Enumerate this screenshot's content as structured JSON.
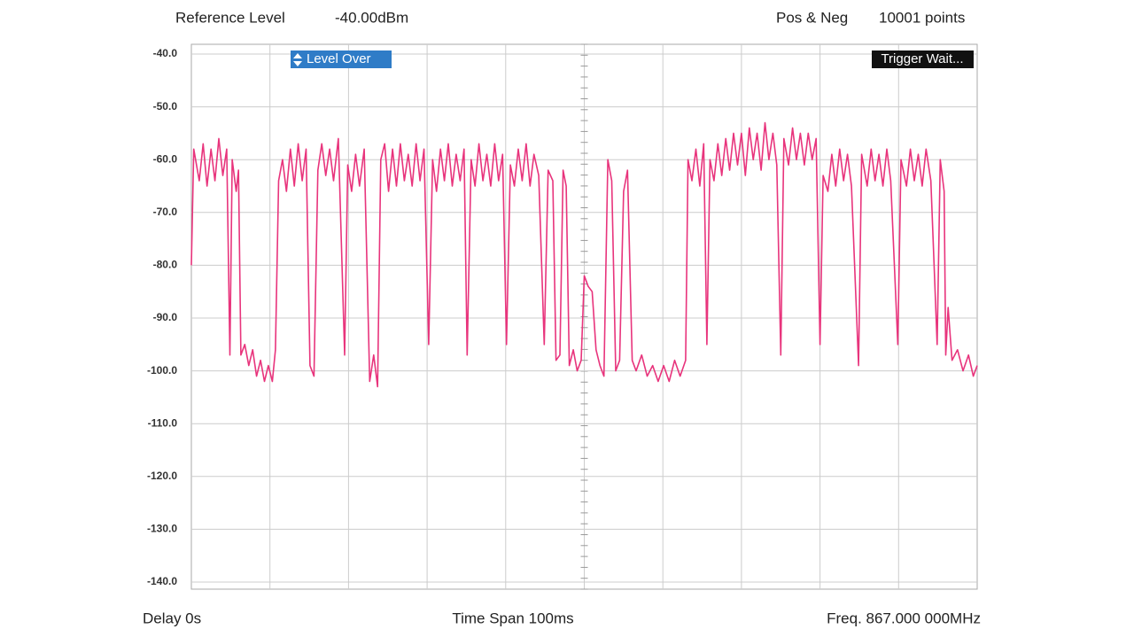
{
  "chart_data": {
    "type": "line",
    "annotations": [
      "Reference Level",
      "-40.00dBm",
      "Pos & Neg",
      "10001 points"
    ],
    "badges": [
      "Level Over",
      "Trigger Wait..."
    ],
    "footer": [
      "Delay 0s",
      "Time Span 100ms",
      "Freq. 867.000 000MHz"
    ],
    "xlim": [
      0,
      100
    ],
    "ylim": [
      -140,
      -40
    ],
    "yticks": [
      {
        "value": -40,
        "label": "-40.0"
      },
      {
        "value": -50,
        "label": "-50.0"
      },
      {
        "value": -60,
        "label": "-60.0"
      },
      {
        "value": -70,
        "label": "-70.0"
      },
      {
        "value": -80,
        "label": "-80.0"
      },
      {
        "value": -90,
        "label": "-90.0"
      },
      {
        "value": -100,
        "label": "-100.0"
      },
      {
        "value": -110,
        "label": "-110.0"
      },
      {
        "value": -120,
        "label": "-120.0"
      },
      {
        "value": -130,
        "label": "-130.0"
      },
      {
        "value": -140,
        "label": "-140.0"
      }
    ],
    "grid": true,
    "series": [
      {
        "color": "#e8347c",
        "x": [
          0,
          0.3,
          1,
          1.5,
          2,
          2.5,
          3,
          3.5,
          4,
          4.5,
          4.9,
          5.2,
          5.7,
          6.0,
          6.3,
          6.8,
          7.3,
          7.8,
          8.3,
          8.8,
          9.3,
          9.8,
          10.3,
          10.7,
          11.1,
          11.6,
          12.1,
          12.6,
          13.1,
          13.6,
          14.1,
          14.6,
          15.1,
          15.6,
          16.1,
          16.6,
          17.1,
          17.6,
          18.1,
          18.7,
          19.5,
          19.9,
          20.4,
          20.9,
          21.4,
          22.0,
          22.7,
          23.2,
          23.7,
          24.1,
          24.6,
          25.1,
          25.6,
          26.1,
          26.6,
          27.1,
          27.6,
          28.1,
          28.6,
          29.1,
          29.6,
          30.2,
          30.7,
          31.2,
          31.7,
          32.2,
          32.7,
          33.2,
          33.7,
          34.2,
          34.7,
          35.1,
          35.6,
          36.1,
          36.6,
          37.1,
          37.6,
          38.1,
          38.6,
          39.1,
          39.6,
          40.1,
          40.6,
          41.1,
          41.6,
          42.1,
          42.6,
          43.1,
          43.6,
          44.2,
          44.9,
          45.4,
          46.0,
          46.4,
          46.9,
          47.3,
          47.7,
          48.1,
          48.6,
          49.1,
          49.6,
          50.0,
          50.5,
          51.0,
          51.5,
          52.0,
          52.5,
          53.0,
          53.5,
          54.0,
          54.5,
          55.0,
          55.5,
          56.1,
          56.6,
          57.3,
          58.0,
          58.7,
          59.4,
          60.1,
          60.8,
          61.5,
          62.2,
          62.9,
          63.2,
          63.7,
          64.2,
          64.7,
          65.2,
          65.6,
          66.0,
          66.5,
          67.0,
          67.5,
          68.0,
          68.5,
          69.0,
          69.5,
          70.0,
          70.5,
          71.0,
          71.5,
          72.0,
          72.5,
          73.0,
          73.5,
          74.0,
          74.5,
          75.0,
          75.4,
          76.0,
          76.5,
          77.0,
          77.5,
          78.0,
          78.5,
          79.0,
          79.5,
          80.0,
          80.4,
          81.0,
          81.5,
          82.0,
          82.5,
          83.0,
          83.5,
          84.0,
          84.9,
          85.3,
          86.0,
          86.5,
          87.0,
          87.5,
          88.0,
          88.5,
          89.0,
          89.9,
          90.3,
          91.0,
          91.5,
          92.0,
          92.5,
          93.0,
          93.5,
          94.1,
          94.9,
          95.3,
          95.8,
          96.0,
          96.3,
          96.8,
          97.5,
          98.2,
          98.9,
          99.5,
          100
        ],
        "values": [
          -80,
          -58,
          -64,
          -57,
          -65,
          -58,
          -64,
          -56,
          -63,
          -58,
          -97,
          -60,
          -66,
          -62,
          -97,
          -95,
          -99,
          -96,
          -101,
          -98,
          -102,
          -99,
          -102,
          -96,
          -64,
          -60,
          -66,
          -58,
          -65,
          -57,
          -64,
          -58,
          -99,
          -101,
          -62,
          -57,
          -63,
          -58,
          -64,
          -56,
          -97,
          -61,
          -66,
          -59,
          -65,
          -58,
          -102,
          -97,
          -103,
          -60,
          -57,
          -66,
          -58,
          -65,
          -57,
          -64,
          -59,
          -65,
          -57,
          -64,
          -58,
          -95,
          -60,
          -66,
          -58,
          -64,
          -57,
          -65,
          -59,
          -64,
          -58,
          -97,
          -60,
          -65,
          -57,
          -64,
          -59,
          -65,
          -57,
          -64,
          -59,
          -95,
          -61,
          -65,
          -58,
          -64,
          -57,
          -65,
          -59,
          -63,
          -95,
          -62,
          -64,
          -98,
          -97,
          -62,
          -65,
          -99,
          -96,
          -100,
          -98,
          -82,
          -84,
          -85,
          -96,
          -99,
          -101,
          -60,
          -64,
          -100,
          -98,
          -66,
          -62,
          -98,
          -100,
          -97,
          -101,
          -99,
          -102,
          -99,
          -102,
          -98,
          -101,
          -98,
          -60,
          -64,
          -58,
          -65,
          -57,
          -95,
          -60,
          -64,
          -57,
          -63,
          -56,
          -62,
          -55,
          -61,
          -55,
          -63,
          -54,
          -60,
          -55,
          -62,
          -53,
          -60,
          -55,
          -61,
          -97,
          -56,
          -61,
          -54,
          -60,
          -55,
          -61,
          -55,
          -60,
          -56,
          -95,
          -63,
          -66,
          -59,
          -65,
          -58,
          -64,
          -59,
          -65,
          -99,
          -59,
          -65,
          -58,
          -64,
          -59,
          -65,
          -58,
          -64,
          -95,
          -60,
          -65,
          -58,
          -64,
          -59,
          -65,
          -58,
          -64,
          -95,
          -60,
          -66,
          -97,
          -88,
          -98,
          -96,
          -100,
          -97,
          -101,
          -99
        ]
      }
    ]
  }
}
